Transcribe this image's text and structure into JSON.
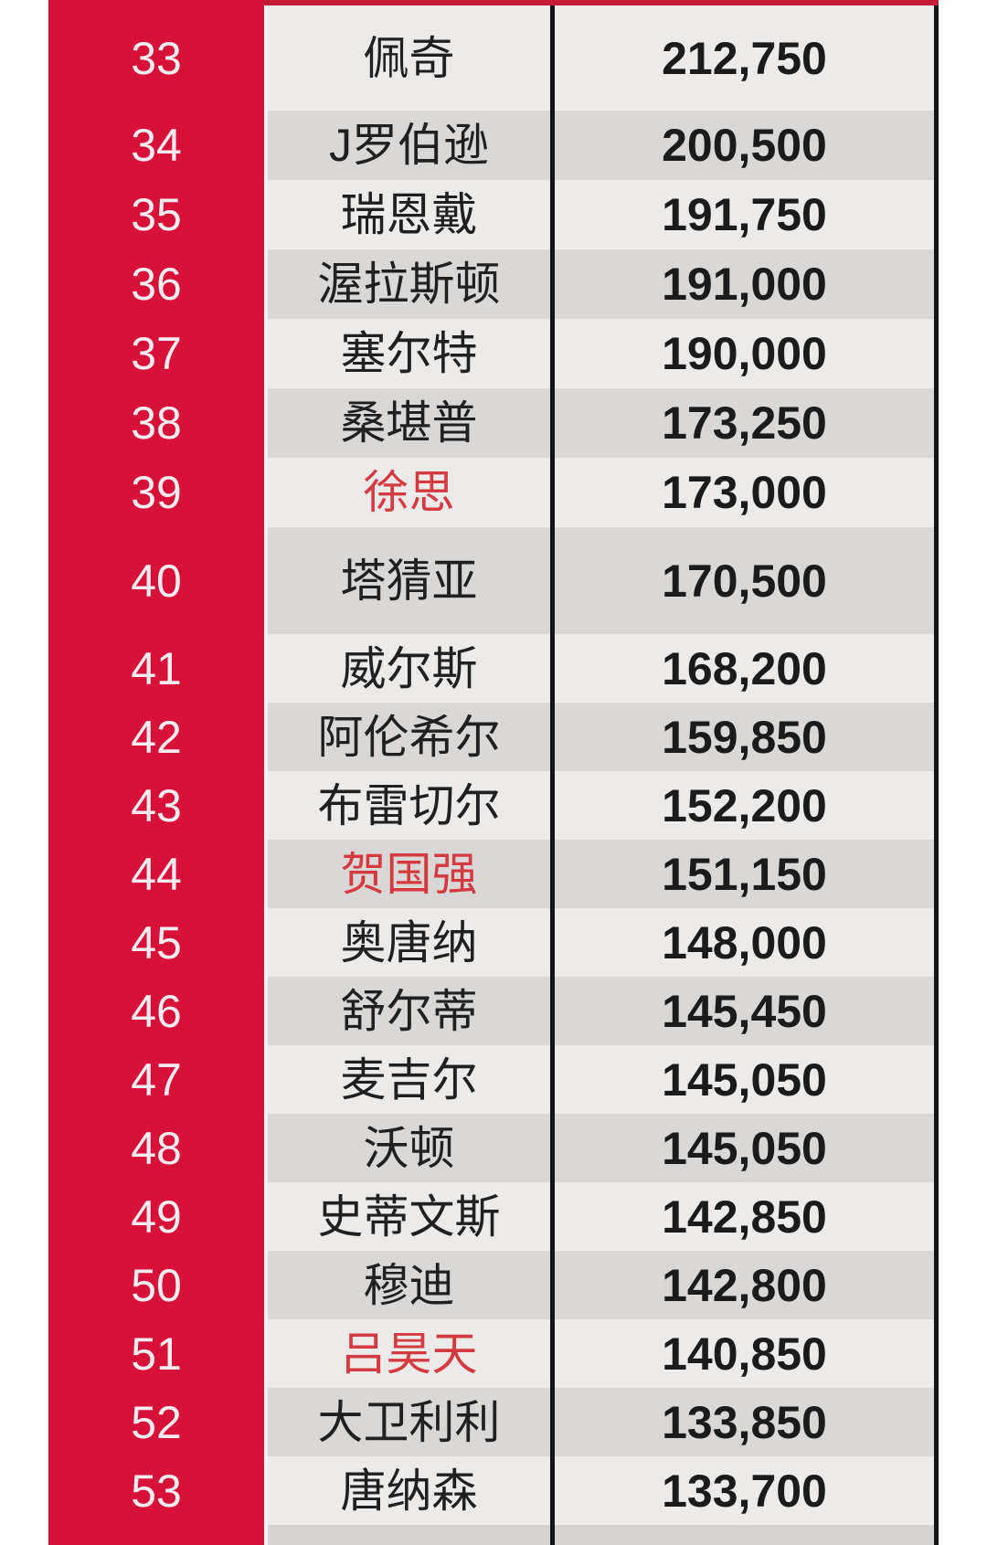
{
  "chart_data": {
    "type": "table",
    "description_visible_text_only": true,
    "rows": [
      {
        "rank": "33",
        "name": "佩奇",
        "value": "212,750",
        "red": false
      },
      {
        "rank": "34",
        "name": "J罗伯逊",
        "value": "200,500",
        "red": false
      },
      {
        "rank": "35",
        "name": "瑞恩戴",
        "value": "191,750",
        "red": false
      },
      {
        "rank": "36",
        "name": "渥拉斯顿",
        "value": "191,000",
        "red": false
      },
      {
        "rank": "37",
        "name": "塞尔特",
        "value": "190,000",
        "red": false
      },
      {
        "rank": "38",
        "name": "桑堪普",
        "value": "173,250",
        "red": false
      },
      {
        "rank": "39",
        "name": "徐思",
        "value": "173,000",
        "red": true
      },
      {
        "rank": "40",
        "name": "塔猜亚",
        "value": "170,500",
        "red": false
      },
      {
        "rank": "41",
        "name": "威尔斯",
        "value": "168,200",
        "red": false
      },
      {
        "rank": "42",
        "name": "阿伦希尔",
        "value": "159,850",
        "red": false
      },
      {
        "rank": "43",
        "name": "布雷切尔",
        "value": "152,200",
        "red": false
      },
      {
        "rank": "44",
        "name": "贺国强",
        "value": "151,150",
        "red": true
      },
      {
        "rank": "45",
        "name": "奥唐纳",
        "value": "148,000",
        "red": false
      },
      {
        "rank": "46",
        "name": "舒尔蒂",
        "value": "145,450",
        "red": false
      },
      {
        "rank": "47",
        "name": "麦吉尔",
        "value": "145,050",
        "red": false
      },
      {
        "rank": "48",
        "name": "沃顿",
        "value": "145,050",
        "red": false
      },
      {
        "rank": "49",
        "name": "史蒂文斯",
        "value": "142,850",
        "red": false
      },
      {
        "rank": "50",
        "name": "穆迪",
        "value": "142,800",
        "red": false
      },
      {
        "rank": "51",
        "name": "吕昊天",
        "value": "140,850",
        "red": true
      },
      {
        "rank": "52",
        "name": "大卫利利",
        "value": "133,850",
        "red": false
      },
      {
        "rank": "53",
        "name": "唐纳森",
        "value": "133,700",
        "red": false
      }
    ],
    "layout_hints": {
      "tall_ranks": [
        33,
        40
      ],
      "shading_rule": "even ranks darker gray, odd ranks lighter gray",
      "legend": "none",
      "grid": "vertical black dividers around value column",
      "partial_next_row_visible": true
    }
  },
  "colors": {
    "rank_column_red": "#D8113A",
    "top_line_red": "#C31C38",
    "light_row": "#ECEBEA",
    "dark_row": "#D9D8D7",
    "partial_row": "#D4D3D2",
    "divider_black": "#141414",
    "rank_number_text": "#F7EDEF",
    "name_text": "#202020",
    "red_player_name_text": "#D63A41",
    "value_text": "#1B1B1B",
    "page_background": "#FFFFFF",
    "rank_gap_seam": "#F6F4F3"
  }
}
